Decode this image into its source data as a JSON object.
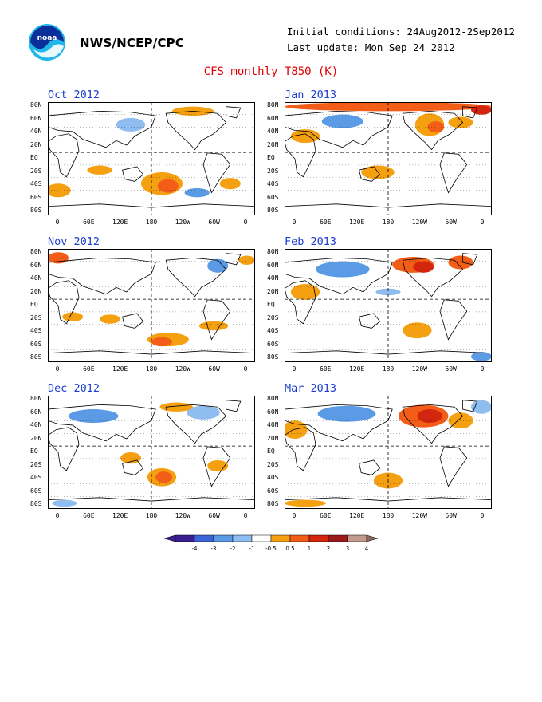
{
  "header": {
    "org": "NWS/NCEP/CPC",
    "initial_conditions": "Initial conditions: 24Aug2012-2Sep2012",
    "last_update": "Last update: Mon Sep 24 2012",
    "title": "CFS monthly T850 (K)",
    "logo_text": "noaa"
  },
  "panels": [
    {
      "title": "Oct 2012"
    },
    {
      "title": "Jan 2013"
    },
    {
      "title": "Nov 2012"
    },
    {
      "title": "Feb 2013"
    },
    {
      "title": "Dec 2012"
    },
    {
      "title": "Mar 2013"
    }
  ],
  "axes": {
    "lat_labels": [
      "80N",
      "60N",
      "40N",
      "20N",
      "EQ",
      "20S",
      "40S",
      "60S",
      "80S"
    ],
    "lon_labels": [
      "0",
      "60E",
      "120E",
      "180",
      "120W",
      "60W",
      "0"
    ]
  },
  "colorbar": {
    "labels": [
      "-4",
      "-3",
      "-2",
      "-1",
      "-0.5",
      "0.5",
      "1",
      "2",
      "3",
      "4"
    ],
    "colors": [
      "#3a1f8f",
      "#3a64d8",
      "#5b9be6",
      "#8fbdf0",
      "#ffffff",
      "#f5a010",
      "#f25d18",
      "#d4250f",
      "#9b1a1a",
      "#c49a8e"
    ]
  },
  "colors": {
    "warm_light": "#f5a010",
    "warm_mid": "#f25d18",
    "warm_dark": "#d4250f",
    "cool_light": "#8fbdf0",
    "cool_mid": "#5b9be6",
    "title_red": "#e00000",
    "panel_title_blue": "#1c3dd0"
  }
}
